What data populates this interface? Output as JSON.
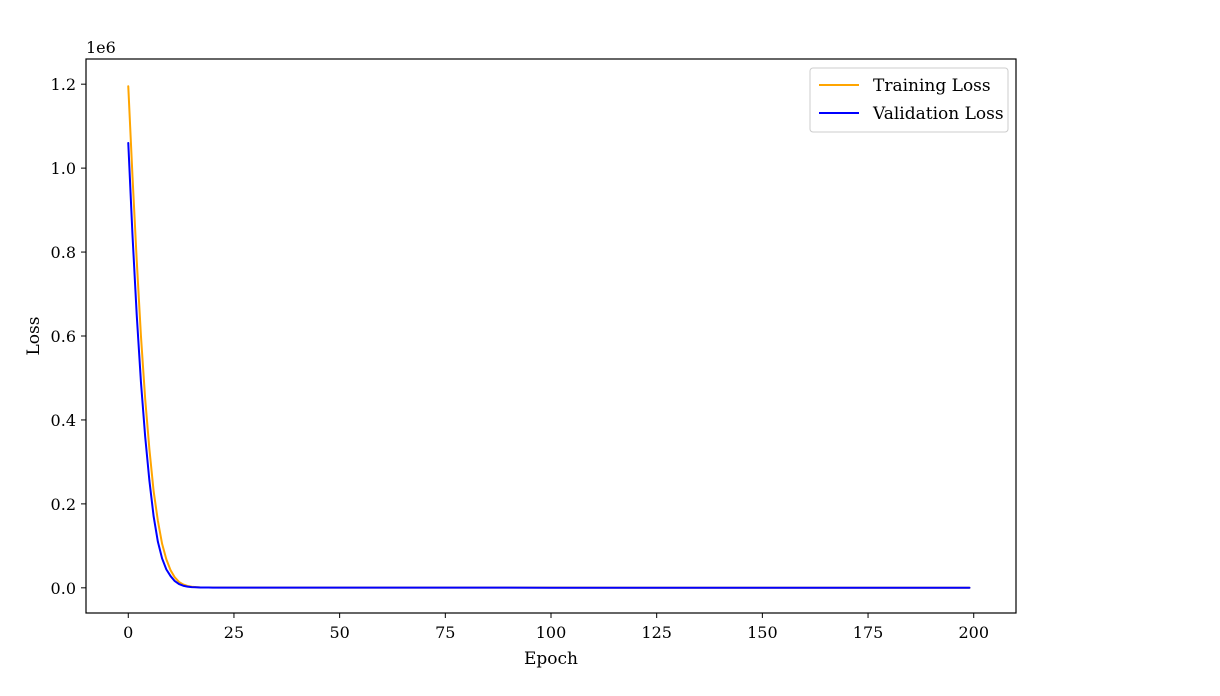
{
  "chart_data": {
    "type": "line",
    "title": "",
    "xlabel": "Epoch",
    "ylabel": "Loss",
    "y_scale_label": "1e6",
    "y_scale": 1000000,
    "xlim": [
      -10,
      210
    ],
    "ylim": [
      -60000,
      1260000
    ],
    "x_ticks": [
      0,
      25,
      50,
      75,
      100,
      125,
      150,
      175,
      200
    ],
    "x_tick_labels": [
      "0",
      "25",
      "50",
      "75",
      "100",
      "125",
      "150",
      "175",
      "200"
    ],
    "y_ticks": [
      0,
      200000,
      400000,
      600000,
      800000,
      1000000,
      1200000
    ],
    "y_tick_labels": [
      "0.0",
      "0.2",
      "0.4",
      "0.6",
      "0.8",
      "1.0",
      "1.2"
    ],
    "grid": false,
    "legend_position": "top-right",
    "series": [
      {
        "name": "Training Loss",
        "color": "#FFA500",
        "x": [
          0,
          1,
          2,
          3,
          4,
          5,
          6,
          7,
          8,
          9,
          10,
          11,
          12,
          13,
          14,
          15,
          16,
          17,
          18,
          19,
          20,
          30,
          50,
          75,
          100,
          125,
          150,
          175,
          199
        ],
        "values": [
          1195000,
          980000,
          780000,
          600000,
          450000,
          330000,
          230000,
          160000,
          105000,
          68000,
          42000,
          25000,
          14000,
          8000,
          4500,
          2600,
          1600,
          1100,
          900,
          800,
          700,
          500,
          400,
          350,
          320,
          300,
          290,
          280,
          270
        ]
      },
      {
        "name": "Validation Loss",
        "color": "#0000FF",
        "x": [
          0,
          1,
          2,
          3,
          4,
          5,
          6,
          7,
          8,
          9,
          10,
          11,
          12,
          13,
          14,
          15,
          16,
          17,
          18,
          19,
          20,
          30,
          50,
          75,
          100,
          125,
          150,
          175,
          199
        ],
        "values": [
          1060000,
          840000,
          650000,
          490000,
          360000,
          255000,
          170000,
          110000,
          70000,
          44000,
          28000,
          16000,
          9000,
          5000,
          2800,
          1700,
          1200,
          900,
          800,
          700,
          600,
          450,
          380,
          340,
          310,
          295,
          285,
          275,
          265
        ]
      }
    ]
  }
}
